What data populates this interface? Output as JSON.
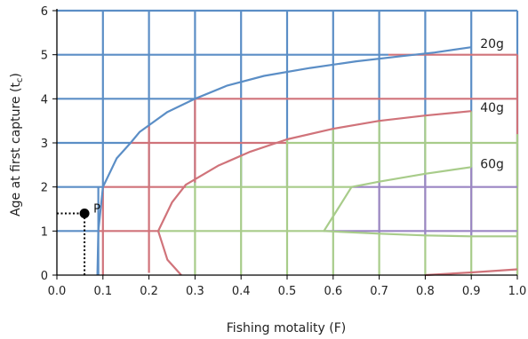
{
  "chart_data": {
    "type": "line",
    "xlabel": "Fishing motality (F)",
    "ylabel_main": "Age at first capture (t",
    "ylabel_sub": "c",
    "ylabel_close": ")",
    "xlim": [
      0,
      1.0
    ],
    "ylim": [
      0,
      6
    ],
    "x_ticks": [
      "0.0",
      "0.1",
      "0.2",
      "0.3",
      "0.4",
      "0.5",
      "0.6",
      "0.7",
      "0.8",
      "0.9",
      "1.0"
    ],
    "y_ticks": [
      "0",
      "1",
      "2",
      "3",
      "4",
      "5",
      "6"
    ],
    "grid_style": "colored cells: blue (upper left), red (middle), green (lower right), purple (inner)",
    "colors": {
      "blue": "#5b8ec6",
      "red": "#d0737a",
      "green": "#a8cc8a",
      "purple": "#9b86c4",
      "black": "#000000"
    },
    "series": [
      {
        "name": "20g",
        "color": "#5b8ec6",
        "points": [
          [
            0.088,
            0
          ],
          [
            0.09,
            1.0
          ],
          [
            0.1,
            2.0
          ],
          [
            0.13,
            2.65
          ],
          [
            0.16,
            3.0
          ],
          [
            0.18,
            3.25
          ],
          [
            0.2,
            3.4
          ],
          [
            0.24,
            3.7
          ],
          [
            0.3,
            4.0
          ],
          [
            0.37,
            4.3
          ],
          [
            0.45,
            4.52
          ],
          [
            0.55,
            4.7
          ],
          [
            0.65,
            4.85
          ],
          [
            0.75,
            4.97
          ],
          [
            0.82,
            5.05
          ],
          [
            0.9,
            5.17
          ]
        ]
      },
      {
        "name": "40g",
        "color": "#d0737a",
        "points": [
          [
            0.27,
            0
          ],
          [
            0.24,
            0.35
          ],
          [
            0.22,
            1.0
          ],
          [
            0.25,
            1.65
          ],
          [
            0.28,
            2.05
          ],
          [
            0.35,
            2.48
          ],
          [
            0.42,
            2.8
          ],
          [
            0.5,
            3.08
          ],
          [
            0.6,
            3.32
          ],
          [
            0.7,
            3.5
          ],
          [
            0.8,
            3.62
          ],
          [
            0.9,
            3.72
          ]
        ]
      },
      {
        "name": "60g",
        "color": "#a8cc8a",
        "points": [
          [
            0.9,
            2.45
          ],
          [
            0.8,
            2.3
          ],
          [
            0.7,
            2.12
          ],
          [
            0.64,
            2.0
          ],
          [
            0.61,
            1.5
          ],
          [
            0.58,
            1.0
          ],
          [
            0.7,
            0.94
          ],
          [
            0.8,
            0.9
          ],
          [
            0.9,
            0.88
          ],
          [
            1.0,
            0.88
          ]
        ]
      },
      {
        "name": "",
        "color": "#d0737a",
        "points": [
          [
            0.8,
            0.0
          ],
          [
            0.9,
            0.06
          ],
          [
            1.0,
            0.13
          ]
        ]
      }
    ],
    "curve_labels": [
      {
        "text": "20g",
        "x": 0.9,
        "y": 5.17
      },
      {
        "text": "40g",
        "x": 0.9,
        "y": 3.72
      },
      {
        "text": "60g",
        "x": 0.9,
        "y": 2.45
      }
    ],
    "point": {
      "label": "P",
      "x": 0.06,
      "y": 1.4
    }
  }
}
